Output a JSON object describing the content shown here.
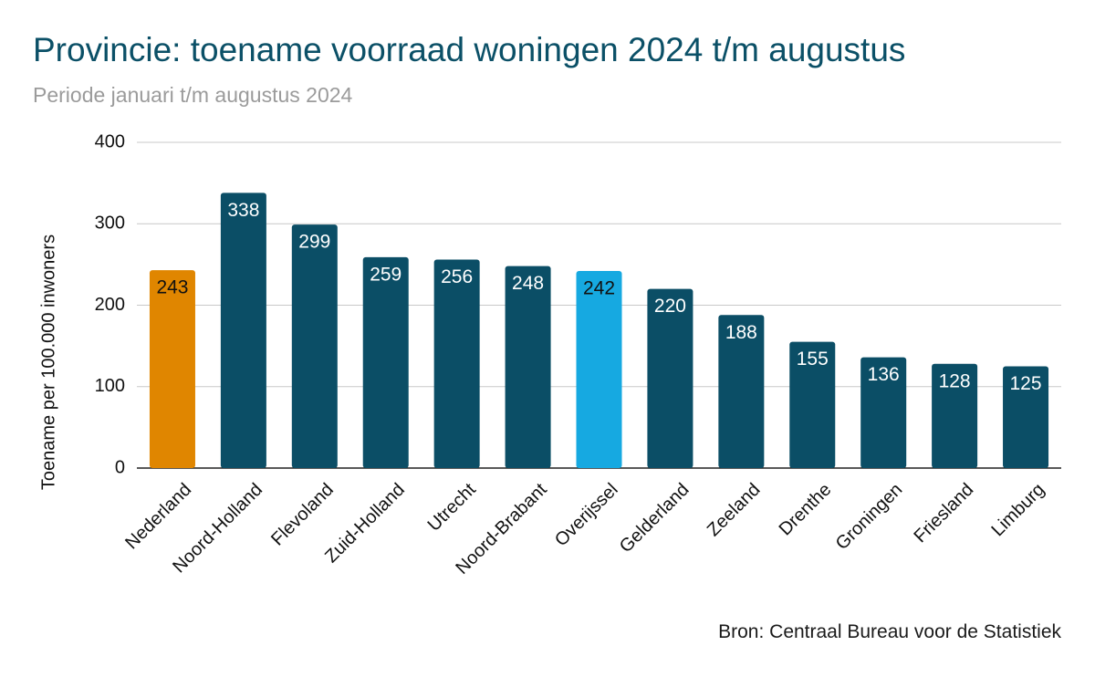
{
  "chart_data": {
    "type": "bar",
    "title": "Provincie: toename voorraad woningen 2024 t/m augustus",
    "subtitle": "Periode januari t/m augustus 2024",
    "xlabel": "",
    "ylabel": "Toename per 100.000 inwoners",
    "ylim": [
      0,
      400
    ],
    "yticks": [
      0,
      100,
      200,
      300,
      400
    ],
    "grid": true,
    "categories": [
      "Nederland",
      "Noord-Holland",
      "Flevoland",
      "Zuid-Holland",
      "Utrecht",
      "Noord-Brabant",
      "Overijssel",
      "Gelderland",
      "Zeeland",
      "Drenthe",
      "Groningen",
      "Friesland",
      "Limburg"
    ],
    "values": [
      243,
      338,
      299,
      259,
      256,
      248,
      242,
      220,
      188,
      155,
      136,
      128,
      125
    ],
    "bar_colors": [
      "#e08600",
      "#0b4e66",
      "#0b4e66",
      "#0b4e66",
      "#0b4e66",
      "#0b4e66",
      "#16a9e1",
      "#0b4e66",
      "#0b4e66",
      "#0b4e66",
      "#0b4e66",
      "#0b4e66",
      "#0b4e66"
    ],
    "label_colors": [
      "#111111",
      "#ffffff",
      "#ffffff",
      "#ffffff",
      "#ffffff",
      "#ffffff",
      "#111111",
      "#ffffff",
      "#ffffff",
      "#ffffff",
      "#ffffff",
      "#ffffff",
      "#ffffff"
    ],
    "source": "Bron: Centraal Bureau voor de Statistiek"
  }
}
